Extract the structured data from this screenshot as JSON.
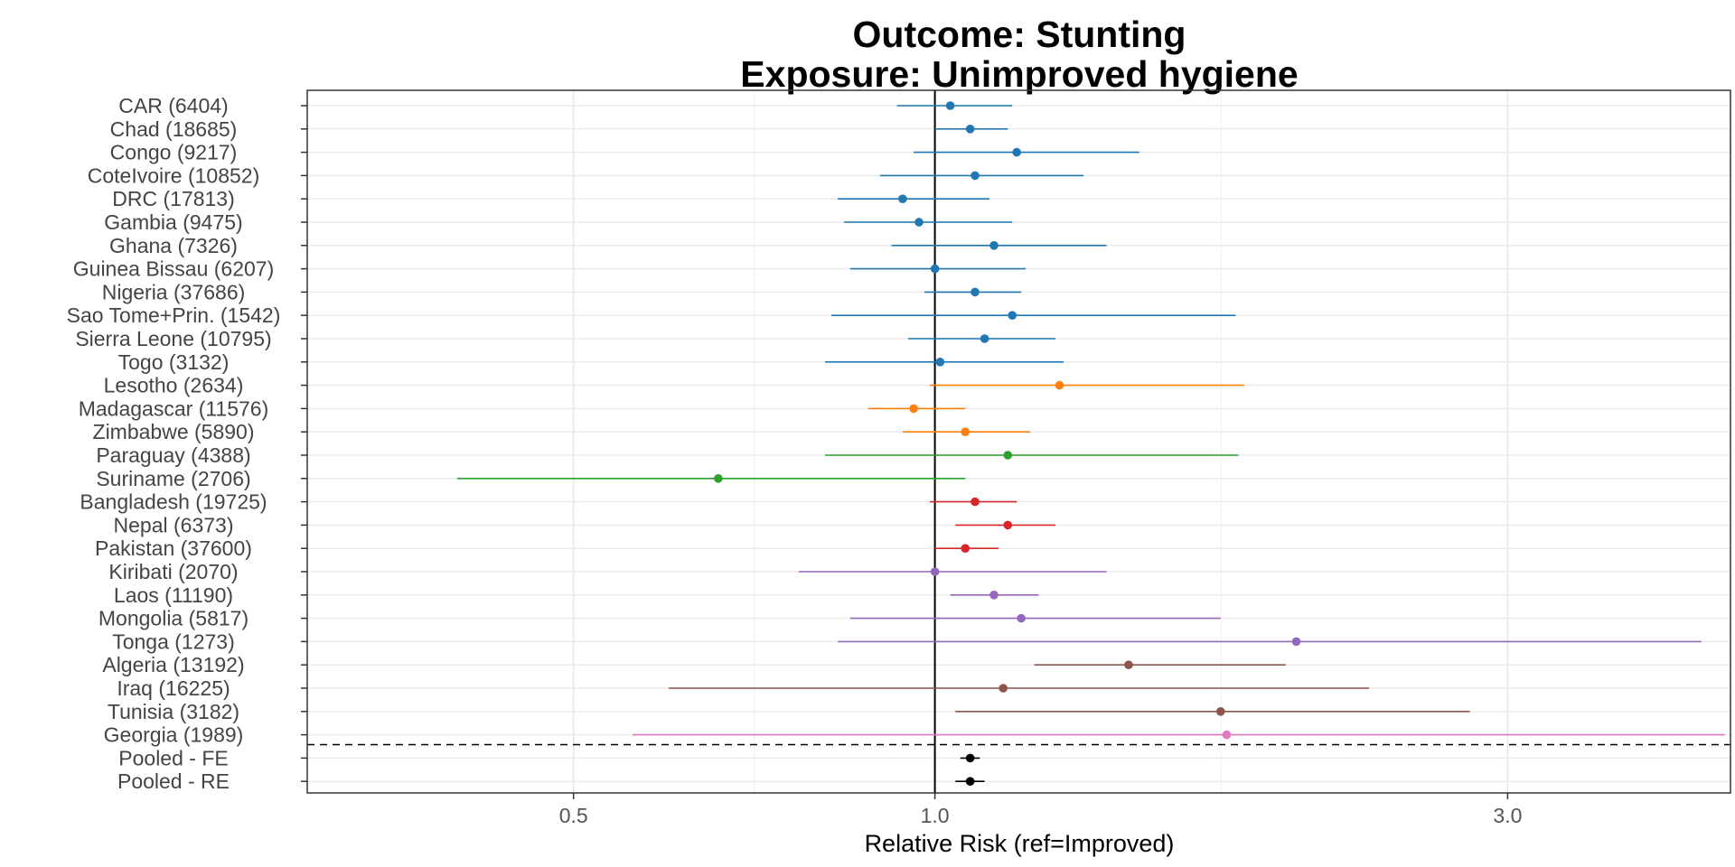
{
  "chart_data": {
    "type": "forest",
    "title": "Outcome: Stunting",
    "subtitle": "Exposure: Unimproved hygiene",
    "xlabel": "Relative Risk (ref=Improved)",
    "x_scale": "log",
    "xlim": [
      0.3,
      4.6
    ],
    "x_ticks": [
      0.5,
      1.0,
      3.0
    ],
    "x_tick_labels": [
      "0.5",
      "1.0",
      "3.0"
    ],
    "reference_line": 1.0,
    "grid": true,
    "rows": [
      {
        "label": "CAR (6404)",
        "est": 1.03,
        "lo": 0.93,
        "hi": 1.16,
        "color": "#1f77b4"
      },
      {
        "label": "Chad (18685)",
        "est": 1.07,
        "lo": 1.0,
        "hi": 1.15,
        "color": "#1f77b4"
      },
      {
        "label": "Congo (9217)",
        "est": 1.17,
        "lo": 0.96,
        "hi": 1.48,
        "color": "#1f77b4"
      },
      {
        "label": "CoteIvoire (10852)",
        "est": 1.08,
        "lo": 0.9,
        "hi": 1.33,
        "color": "#1f77b4"
      },
      {
        "label": "DRC (17813)",
        "est": 0.94,
        "lo": 0.83,
        "hi": 1.11,
        "color": "#1f77b4"
      },
      {
        "label": "Gambia (9475)",
        "est": 0.97,
        "lo": 0.84,
        "hi": 1.16,
        "color": "#1f77b4"
      },
      {
        "label": "Ghana (7326)",
        "est": 1.12,
        "lo": 0.92,
        "hi": 1.39,
        "color": "#1f77b4"
      },
      {
        "label": "Guinea Bissau (6207)",
        "est": 1.0,
        "lo": 0.85,
        "hi": 1.19,
        "color": "#1f77b4"
      },
      {
        "label": "Nigeria (37686)",
        "est": 1.08,
        "lo": 0.98,
        "hi": 1.18,
        "color": "#1f77b4"
      },
      {
        "label": "Sao Tome+Prin. (1542)",
        "est": 1.16,
        "lo": 0.82,
        "hi": 1.78,
        "color": "#1f77b4"
      },
      {
        "label": "Sierra Leone (10795)",
        "est": 1.1,
        "lo": 0.95,
        "hi": 1.26,
        "color": "#1f77b4"
      },
      {
        "label": "Togo (3132)",
        "est": 1.01,
        "lo": 0.81,
        "hi": 1.28,
        "color": "#1f77b4"
      },
      {
        "label": "Lesotho (2634)",
        "est": 1.27,
        "lo": 0.99,
        "hi": 1.81,
        "color": "#ff7f0e"
      },
      {
        "label": "Madagascar (11576)",
        "est": 0.96,
        "lo": 0.88,
        "hi": 1.06,
        "color": "#ff7f0e"
      },
      {
        "label": "Zimbabwe (5890)",
        "est": 1.06,
        "lo": 0.94,
        "hi": 1.2,
        "color": "#ff7f0e"
      },
      {
        "label": "Paraguay (4388)",
        "est": 1.15,
        "lo": 0.81,
        "hi": 1.79,
        "color": "#2ca02c"
      },
      {
        "label": "Suriname (2706)",
        "est": 0.66,
        "lo": 0.4,
        "hi": 1.06,
        "color": "#2ca02c"
      },
      {
        "label": "Bangladesh (19725)",
        "est": 1.08,
        "lo": 0.99,
        "hi": 1.17,
        "color": "#d62728"
      },
      {
        "label": "Nepal (6373)",
        "est": 1.15,
        "lo": 1.04,
        "hi": 1.26,
        "color": "#d62728"
      },
      {
        "label": "Pakistan (37600)",
        "est": 1.06,
        "lo": 1.0,
        "hi": 1.13,
        "color": "#d62728"
      },
      {
        "label": "Kiribati (2070)",
        "est": 1.0,
        "lo": 0.77,
        "hi": 1.39,
        "color": "#9467bd"
      },
      {
        "label": "Laos (11190)",
        "est": 1.12,
        "lo": 1.03,
        "hi": 1.22,
        "color": "#9467bd"
      },
      {
        "label": "Mongolia (5817)",
        "est": 1.18,
        "lo": 0.85,
        "hi": 1.73,
        "color": "#9467bd"
      },
      {
        "label": "Tonga (1273)",
        "est": 2.0,
        "lo": 0.83,
        "hi": 4.35,
        "color": "#9467bd"
      },
      {
        "label": "Algeria (13192)",
        "est": 1.45,
        "lo": 1.21,
        "hi": 1.96,
        "color": "#8c564b"
      },
      {
        "label": "Iraq (16225)",
        "est": 1.14,
        "lo": 0.6,
        "hi": 2.3,
        "color": "#8c564b"
      },
      {
        "label": "Tunisia (3182)",
        "est": 1.73,
        "lo": 1.04,
        "hi": 2.79,
        "color": "#8c564b"
      },
      {
        "label": "Georgia (1989)",
        "est": 1.75,
        "lo": 0.56,
        "hi": 4.55,
        "color": "#e377c2"
      },
      {
        "label": "Pooled - FE",
        "est": 1.07,
        "lo": 1.05,
        "hi": 1.09,
        "color": "#000000"
      },
      {
        "label": "Pooled - RE",
        "est": 1.07,
        "lo": 1.04,
        "hi": 1.1,
        "color": "#000000"
      }
    ]
  }
}
